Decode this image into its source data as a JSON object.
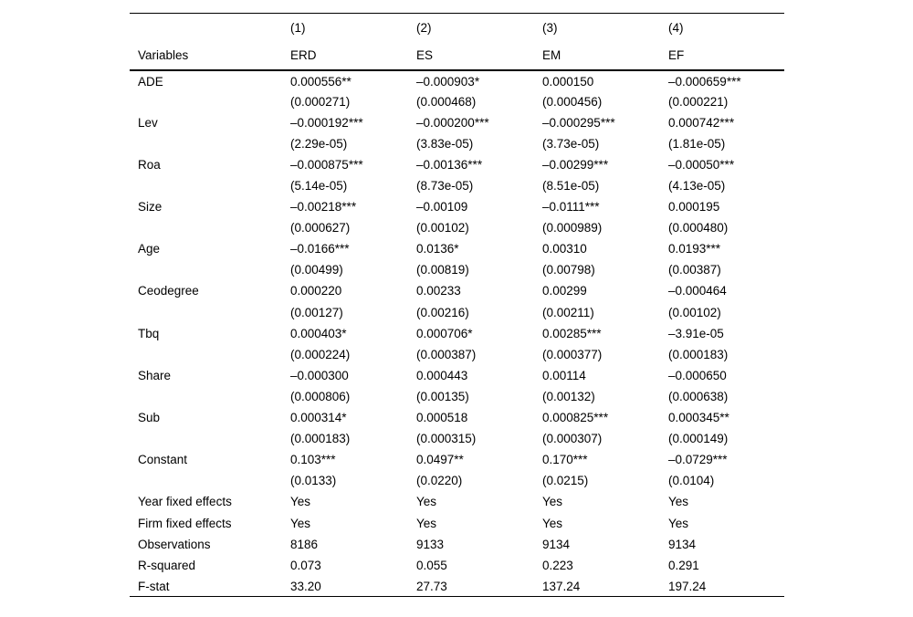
{
  "table": {
    "header": {
      "model_numbers": [
        "(1)",
        "(2)",
        "(3)",
        "(4)"
      ],
      "variables_label": "Variables",
      "model_names": [
        "ERD",
        "ES",
        "EM",
        "EF"
      ]
    },
    "rows": [
      {
        "label": "ADE",
        "values": [
          "0.000556**",
          "–0.000903*",
          "0.000150",
          "–0.000659***"
        ],
        "se": [
          "(0.000271)",
          "(0.000468)",
          "(0.000456)",
          "(0.000221)"
        ]
      },
      {
        "label": "Lev",
        "values": [
          "–0.000192***",
          "–0.000200***",
          "–0.000295***",
          "0.000742***"
        ],
        "se": [
          "(2.29e-05)",
          "(3.83e-05)",
          "(3.73e-05)",
          "(1.81e-05)"
        ]
      },
      {
        "label": "Roa",
        "values": [
          "–0.000875***",
          "–0.00136***",
          "–0.00299***",
          "–0.00050***"
        ],
        "se": [
          "(5.14e-05)",
          "(8.73e-05)",
          "(8.51e-05)",
          "(4.13e-05)"
        ]
      },
      {
        "label": "Size",
        "values": [
          "–0.00218***",
          "–0.00109",
          "–0.0111***",
          "0.000195"
        ],
        "se": [
          "(0.000627)",
          "(0.00102)",
          "(0.000989)",
          "(0.000480)"
        ]
      },
      {
        "label": "Age",
        "values": [
          "–0.0166***",
          "0.0136*",
          "0.00310",
          "0.0193***"
        ],
        "se": [
          "(0.00499)",
          "(0.00819)",
          "(0.00798)",
          "(0.00387)"
        ]
      },
      {
        "label": "Ceodegree",
        "values": [
          "0.000220",
          "0.00233",
          "0.00299",
          "–0.000464"
        ],
        "se": [
          "(0.00127)",
          "(0.00216)",
          "(0.00211)",
          "(0.00102)"
        ]
      },
      {
        "label": "Tbq",
        "values": [
          "0.000403*",
          "0.000706*",
          "0.00285***",
          "–3.91e-05"
        ],
        "se": [
          "(0.000224)",
          "(0.000387)",
          "(0.000377)",
          "(0.000183)"
        ]
      },
      {
        "label": "Share",
        "values": [
          "–0.000300",
          "0.000443",
          "0.00114",
          "–0.000650"
        ],
        "se": [
          "(0.000806)",
          "(0.00135)",
          "(0.00132)",
          "(0.000638)"
        ]
      },
      {
        "label": "Sub",
        "values": [
          "0.000314*",
          "0.000518",
          "0.000825***",
          "0.000345**"
        ],
        "se": [
          "(0.000183)",
          "(0.000315)",
          "(0.000307)",
          "(0.000149)"
        ]
      },
      {
        "label": "Constant",
        "values": [
          "0.103***",
          "0.0497**",
          "0.170***",
          "–0.0729***"
        ],
        "se": [
          "(0.0133)",
          "(0.0220)",
          "(0.0215)",
          "(0.0104)"
        ]
      }
    ],
    "summary_rows": [
      {
        "label": "Year fixed effects",
        "values": [
          "Yes",
          "Yes",
          "Yes",
          "Yes"
        ]
      },
      {
        "label": "Firm fixed effects",
        "values": [
          "Yes",
          "Yes",
          "Yes",
          "Yes"
        ]
      },
      {
        "label": "Observations",
        "values": [
          "8186",
          "9133",
          "9134",
          "9134"
        ]
      },
      {
        "label": "R-squared",
        "values": [
          "0.073",
          "0.055",
          "0.223",
          "0.291"
        ]
      },
      {
        "label": "F-stat",
        "values": [
          "33.20",
          "27.73",
          "137.24",
          "197.24"
        ]
      }
    ]
  }
}
